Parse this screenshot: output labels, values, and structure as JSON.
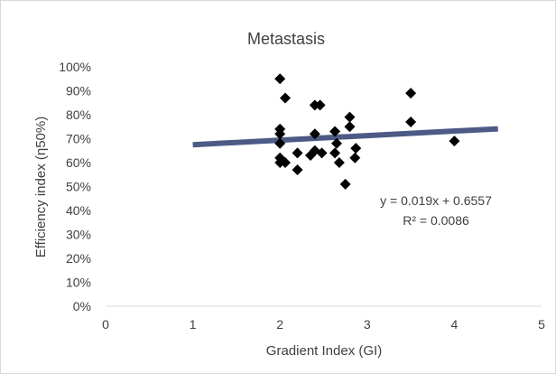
{
  "chart_data": {
    "type": "scatter",
    "title": "Metastasis",
    "xlabel": "Gradient Index (GI)",
    "ylabel": "Efficiency index (η50%)",
    "xlim": [
      0,
      5
    ],
    "ylim": [
      0,
      1
    ],
    "x_ticks": [
      "0",
      "1",
      "2",
      "3",
      "4",
      "5"
    ],
    "y_ticks": [
      "0%",
      "10%",
      "20%",
      "30%",
      "40%",
      "50%",
      "60%",
      "70%",
      "80%",
      "90%",
      "100%"
    ],
    "grid": false,
    "legend": "none",
    "marker": "diamond",
    "marker_color": "#000000",
    "trendline_color": "#4c5a85",
    "series": [
      {
        "points": [
          [
            2.0,
            0.95
          ],
          [
            2.06,
            0.87
          ],
          [
            2.0,
            0.74
          ],
          [
            2.0,
            0.72
          ],
          [
            2.0,
            0.68
          ],
          [
            2.0,
            0.62
          ],
          [
            2.0,
            0.6
          ],
          [
            2.06,
            0.6
          ],
          [
            2.2,
            0.64
          ],
          [
            2.2,
            0.57
          ],
          [
            2.35,
            0.63
          ],
          [
            2.4,
            0.84
          ],
          [
            2.46,
            0.84
          ],
          [
            2.4,
            0.72
          ],
          [
            2.4,
            0.65
          ],
          [
            2.48,
            0.64
          ],
          [
            2.63,
            0.73
          ],
          [
            2.65,
            0.68
          ],
          [
            2.63,
            0.64
          ],
          [
            2.68,
            0.6
          ],
          [
            2.8,
            0.79
          ],
          [
            2.8,
            0.75
          ],
          [
            2.87,
            0.66
          ],
          [
            2.86,
            0.62
          ],
          [
            2.75,
            0.51
          ],
          [
            3.5,
            0.89
          ],
          [
            3.5,
            0.77
          ],
          [
            4.0,
            0.69
          ]
        ]
      }
    ],
    "trendline": {
      "slope": 0.019,
      "intercept": 0.6557,
      "x_range": [
        1,
        4.5
      ],
      "equation": "y = 0.019x + 0.6557",
      "r_squared": "R² = 0.0086"
    }
  }
}
